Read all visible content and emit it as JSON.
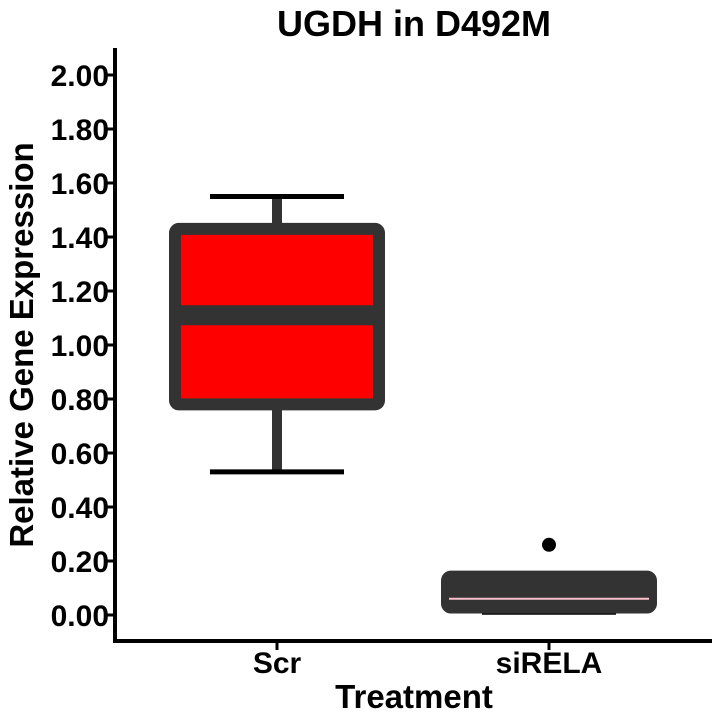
{
  "chart_data": {
    "type": "box",
    "title": "UGDH in D492M",
    "xlabel": "Treatment",
    "ylabel": "Relative Gene Expression",
    "ylim": [
      -0.1,
      2.1
    ],
    "yticks": [
      0.0,
      0.2,
      0.4,
      0.6,
      0.8,
      1.0,
      1.2,
      1.4,
      1.6,
      1.8,
      2.0
    ],
    "ytick_labels": [
      "0.00",
      "0.20",
      "0.40",
      "0.60",
      "0.80",
      "1.00",
      "1.20",
      "1.40",
      "1.60",
      "1.80",
      "2.00"
    ],
    "categories": [
      "Scr",
      "siRELA"
    ],
    "boxes": [
      {
        "category": "Scr",
        "whisker_low": 0.53,
        "q1": 0.78,
        "median": 1.11,
        "q3": 1.43,
        "whisker_high": 1.55,
        "outliers": [],
        "fill": "#ff0000"
      },
      {
        "category": "siRELA",
        "whisker_low": 0.01,
        "q1": 0.05,
        "median": 0.06,
        "q3": 0.12,
        "whisker_high": 0.12,
        "outliers": [
          0.26
        ],
        "fill": "#ffc0cb"
      }
    ],
    "grid": false,
    "legend": "none"
  },
  "colors": {
    "box_outline": "#333333",
    "axis": "#000000",
    "outlier": "#000000"
  }
}
